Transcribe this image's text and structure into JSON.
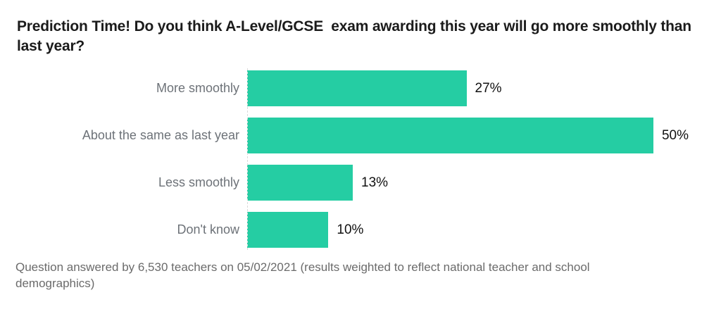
{
  "page": {
    "background": "#ffffff"
  },
  "chart_data": {
    "type": "bar",
    "orientation": "horizontal",
    "title": "Prediction Time! Do you think A-Level/GCSE  exam awarding this year will go more smoothly than last year?",
    "categories": [
      "More smoothly",
      "About the same as last year",
      "Less smoothly",
      "Don't know"
    ],
    "values": [
      27,
      50,
      13,
      10
    ],
    "value_labels": [
      "27%",
      "50%",
      "13%",
      "10%"
    ],
    "xlim": [
      0,
      50
    ],
    "grid": false,
    "legend": false,
    "axis_style": "single dashed vertical baseline at zero",
    "colors": {
      "bar": "#25cda3",
      "title_text": "#1b1b1b",
      "category_text": "#6d7278",
      "value_text": "#111111",
      "footnote_text": "#6b6b6b",
      "axis_line": "#d9d9d9"
    },
    "footnote": "Question answered by 6,530 teachers on 05/02/2021 (results weighted to reflect national teacher and school demographics)"
  }
}
